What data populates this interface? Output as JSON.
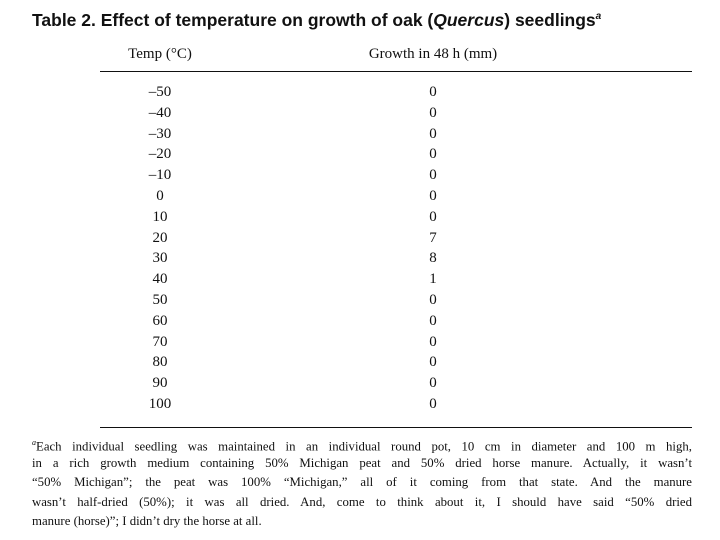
{
  "title": {
    "prefix": "Table 2. Effect of temperature on growth of oak (",
    "italic": "Quercus",
    "suffix": ") seedlings",
    "note_mark": "a"
  },
  "table": {
    "headers": [
      "Temp (°C)",
      "Growth in 48 h (mm)"
    ],
    "rows": [
      [
        "–50",
        "0"
      ],
      [
        "–40",
        "0"
      ],
      [
        "–30",
        "0"
      ],
      [
        "–20",
        "0"
      ],
      [
        "–10",
        "0"
      ],
      [
        "0",
        "0"
      ],
      [
        "10",
        "0"
      ],
      [
        "20",
        "7"
      ],
      [
        "30",
        "8"
      ],
      [
        "40",
        "1"
      ],
      [
        "50",
        "0"
      ],
      [
        "60",
        "0"
      ],
      [
        "70",
        "0"
      ],
      [
        "80",
        "0"
      ],
      [
        "90",
        "0"
      ],
      [
        "100",
        "0"
      ]
    ]
  },
  "footnote": {
    "mark": "a",
    "lines": [
      "Each individual seedling was maintained in an individual round pot, 10 cm in diameter and 100 m high,",
      "in a rich growth medium containing 50% Michigan peat and 50% dried horse manure. Actually, it wasn’t",
      "“50% Michigan”; the peat was 100% “Michigan,” all of it coming from that state. And the manure",
      "wasn’t half-dried (50%); it was all dried. And, come to think about it, I should have said “50% dried",
      "manure (horse)”; I didn’t dry the horse at all."
    ]
  }
}
